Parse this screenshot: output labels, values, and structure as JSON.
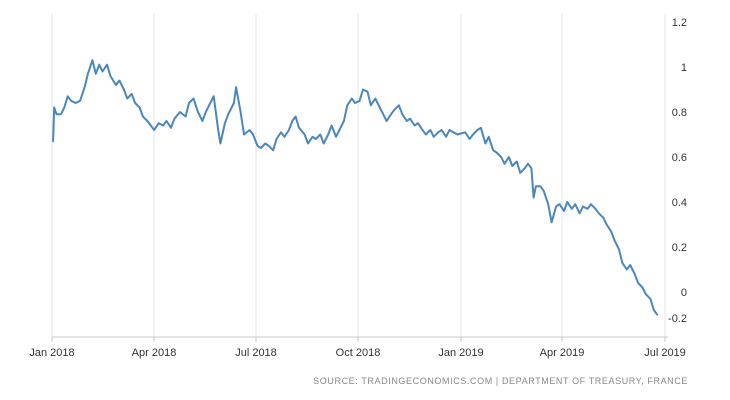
{
  "chart_data": {
    "type": "line",
    "title": "",
    "xlabel": "",
    "ylabel": "",
    "x_ticks": [
      "Jan 2018",
      "Apr 2018",
      "Jul 2018",
      "Oct 2018",
      "Jan 2019",
      "Apr 2019",
      "Jul 2019"
    ],
    "y_ticks": [
      "1.2",
      "1",
      "0.8",
      "0.6",
      "0.4",
      "0.2",
      "0",
      "-0.2"
    ],
    "ylim": [
      -0.2,
      1.2
    ],
    "grid": "vertical",
    "colors": {
      "line": "#4a87bd",
      "grid": "#e6e6e6",
      "axis": "#c8c8c8"
    },
    "series": [
      {
        "points": [
          [
            "2018-01-02",
            0.67
          ],
          [
            "2018-01-03",
            0.82
          ],
          [
            "2018-01-05",
            0.79
          ],
          [
            "2018-01-09",
            0.79
          ],
          [
            "2018-01-12",
            0.82
          ],
          [
            "2018-01-15",
            0.87
          ],
          [
            "2018-01-18",
            0.85
          ],
          [
            "2018-01-22",
            0.84
          ],
          [
            "2018-01-26",
            0.85
          ],
          [
            "2018-01-30",
            0.91
          ],
          [
            "2018-02-02",
            0.97
          ],
          [
            "2018-02-06",
            1.03
          ],
          [
            "2018-02-09",
            0.97
          ],
          [
            "2018-02-12",
            1.01
          ],
          [
            "2018-02-15",
            0.98
          ],
          [
            "2018-02-19",
            1.01
          ],
          [
            "2018-02-22",
            0.96
          ],
          [
            "2018-02-27",
            0.92
          ],
          [
            "2018-03-02",
            0.94
          ],
          [
            "2018-03-06",
            0.9
          ],
          [
            "2018-03-09",
            0.86
          ],
          [
            "2018-03-13",
            0.88
          ],
          [
            "2018-03-16",
            0.84
          ],
          [
            "2018-03-20",
            0.82
          ],
          [
            "2018-03-23",
            0.78
          ],
          [
            "2018-03-27",
            0.76
          ],
          [
            "2018-04-02",
            0.72
          ],
          [
            "2018-04-06",
            0.75
          ],
          [
            "2018-04-10",
            0.74
          ],
          [
            "2018-04-13",
            0.76
          ],
          [
            "2018-04-17",
            0.73
          ],
          [
            "2018-04-20",
            0.77
          ],
          [
            "2018-04-25",
            0.8
          ],
          [
            "2018-04-30",
            0.78
          ],
          [
            "2018-05-03",
            0.84
          ],
          [
            "2018-05-07",
            0.86
          ],
          [
            "2018-05-11",
            0.8
          ],
          [
            "2018-05-15",
            0.76
          ],
          [
            "2018-05-18",
            0.8
          ],
          [
            "2018-05-23",
            0.85
          ],
          [
            "2018-05-25",
            0.87
          ],
          [
            "2018-05-29",
            0.72
          ],
          [
            "2018-05-31",
            0.66
          ],
          [
            "2018-06-04",
            0.75
          ],
          [
            "2018-06-07",
            0.79
          ],
          [
            "2018-06-12",
            0.84
          ],
          [
            "2018-06-14",
            0.91
          ],
          [
            "2018-06-18",
            0.8
          ],
          [
            "2018-06-21",
            0.7
          ],
          [
            "2018-06-26",
            0.72
          ],
          [
            "2018-06-29",
            0.7
          ],
          [
            "2018-07-03",
            0.65
          ],
          [
            "2018-07-06",
            0.64
          ],
          [
            "2018-07-10",
            0.66
          ],
          [
            "2018-07-13",
            0.65
          ],
          [
            "2018-07-17",
            0.63
          ],
          [
            "2018-07-20",
            0.68
          ],
          [
            "2018-07-24",
            0.71
          ],
          [
            "2018-07-27",
            0.69
          ],
          [
            "2018-07-31",
            0.72
          ],
          [
            "2018-08-03",
            0.76
          ],
          [
            "2018-08-06",
            0.78
          ],
          [
            "2018-08-09",
            0.73
          ],
          [
            "2018-08-14",
            0.7
          ],
          [
            "2018-08-17",
            0.66
          ],
          [
            "2018-08-21",
            0.69
          ],
          [
            "2018-08-24",
            0.68
          ],
          [
            "2018-08-28",
            0.7
          ],
          [
            "2018-08-31",
            0.66
          ],
          [
            "2018-09-04",
            0.7
          ],
          [
            "2018-09-07",
            0.74
          ],
          [
            "2018-09-11",
            0.69
          ],
          [
            "2018-09-14",
            0.72
          ],
          [
            "2018-09-18",
            0.76
          ],
          [
            "2018-09-21",
            0.83
          ],
          [
            "2018-09-25",
            0.86
          ],
          [
            "2018-09-28",
            0.84
          ],
          [
            "2018-10-02",
            0.85
          ],
          [
            "2018-10-05",
            0.9
          ],
          [
            "2018-10-09",
            0.89
          ],
          [
            "2018-10-12",
            0.83
          ],
          [
            "2018-10-16",
            0.86
          ],
          [
            "2018-10-19",
            0.83
          ],
          [
            "2018-10-23",
            0.79
          ],
          [
            "2018-10-26",
            0.76
          ],
          [
            "2018-10-30",
            0.79
          ],
          [
            "2018-11-02",
            0.81
          ],
          [
            "2018-11-06",
            0.83
          ],
          [
            "2018-11-09",
            0.79
          ],
          [
            "2018-11-13",
            0.76
          ],
          [
            "2018-11-16",
            0.77
          ],
          [
            "2018-11-20",
            0.74
          ],
          [
            "2018-11-23",
            0.75
          ],
          [
            "2018-11-27",
            0.72
          ],
          [
            "2018-11-30",
            0.7
          ],
          [
            "2018-12-04",
            0.72
          ],
          [
            "2018-12-07",
            0.69
          ],
          [
            "2018-12-11",
            0.71
          ],
          [
            "2018-12-14",
            0.72
          ],
          [
            "2018-12-18",
            0.69
          ],
          [
            "2018-12-21",
            0.72
          ],
          [
            "2018-12-28",
            0.7
          ],
          [
            "2019-01-04",
            0.71
          ],
          [
            "2019-01-08",
            0.68
          ],
          [
            "2019-01-11",
            0.7
          ],
          [
            "2019-01-15",
            0.72
          ],
          [
            "2019-01-18",
            0.73
          ],
          [
            "2019-01-22",
            0.66
          ],
          [
            "2019-01-25",
            0.69
          ],
          [
            "2019-01-29",
            0.63
          ],
          [
            "2019-02-01",
            0.62
          ],
          [
            "2019-02-05",
            0.6
          ],
          [
            "2019-02-08",
            0.57
          ],
          [
            "2019-02-12",
            0.6
          ],
          [
            "2019-02-15",
            0.56
          ],
          [
            "2019-02-19",
            0.58
          ],
          [
            "2019-02-22",
            0.53
          ],
          [
            "2019-02-26",
            0.55
          ],
          [
            "2019-03-01",
            0.57
          ],
          [
            "2019-03-04",
            0.55
          ],
          [
            "2019-03-06",
            0.42
          ],
          [
            "2019-03-08",
            0.47
          ],
          [
            "2019-03-12",
            0.47
          ],
          [
            "2019-03-15",
            0.45
          ],
          [
            "2019-03-19",
            0.39
          ],
          [
            "2019-03-22",
            0.31
          ],
          [
            "2019-03-26",
            0.38
          ],
          [
            "2019-03-29",
            0.39
          ],
          [
            "2019-04-02",
            0.36
          ],
          [
            "2019-04-05",
            0.4
          ],
          [
            "2019-04-09",
            0.37
          ],
          [
            "2019-04-12",
            0.39
          ],
          [
            "2019-04-16",
            0.35
          ],
          [
            "2019-04-19",
            0.38
          ],
          [
            "2019-04-23",
            0.37
          ],
          [
            "2019-04-26",
            0.39
          ],
          [
            "2019-04-30",
            0.37
          ],
          [
            "2019-05-03",
            0.35
          ],
          [
            "2019-05-07",
            0.33
          ],
          [
            "2019-05-10",
            0.3
          ],
          [
            "2019-05-14",
            0.27
          ],
          [
            "2019-05-17",
            0.23
          ],
          [
            "2019-05-21",
            0.19
          ],
          [
            "2019-05-24",
            0.13
          ],
          [
            "2019-05-28",
            0.1
          ],
          [
            "2019-05-31",
            0.12
          ],
          [
            "2019-06-04",
            0.08
          ],
          [
            "2019-06-07",
            0.04
          ],
          [
            "2019-06-11",
            0.02
          ],
          [
            "2019-06-14",
            -0.01
          ],
          [
            "2019-06-18",
            -0.03
          ],
          [
            "2019-06-21",
            -0.08
          ],
          [
            "2019-06-24",
            -0.1
          ]
        ]
      }
    ]
  },
  "source_text": "SOURCE: TRADINGECONOMICS.COM  |  DEPARTMENT OF TREASURY, FRANCE"
}
